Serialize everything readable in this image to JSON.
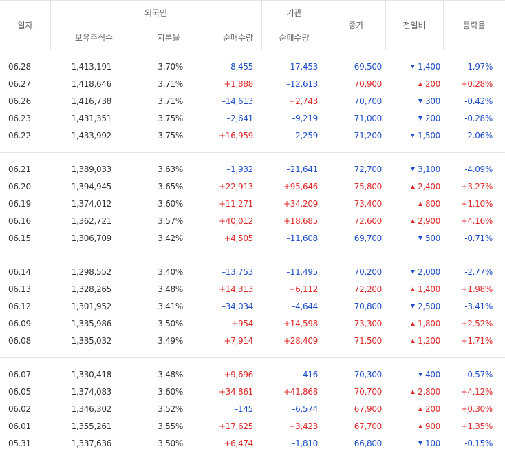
{
  "header": {
    "date": "일자",
    "foreign": "외국인",
    "holdings": "보유주식수",
    "ratio": "지분율",
    "foreign_net": "순매수량",
    "institution": "기관",
    "institution_net": "순매수량",
    "close": "종가",
    "change": "전일비",
    "rate": "등락율"
  },
  "groups": [
    {
      "rows": [
        [
          "06.28",
          "1,413,191",
          "3.70%",
          "–8,455",
          "–17,453",
          "69,500",
          "1,400",
          "-1.97%"
        ],
        [
          "06.27",
          "1,418,646",
          "3.71%",
          "+1,888",
          "–12,613",
          "70,900",
          "200",
          "+0.28%"
        ],
        [
          "06.26",
          "1,416,738",
          "3.71%",
          "–14,613",
          "+2,743",
          "70,700",
          "300",
          "-0.42%"
        ],
        [
          "06.23",
          "1,431,351",
          "3.75%",
          "–2,641",
          "–9,219",
          "71,000",
          "200",
          "-0.28%"
        ],
        [
          "06.22",
          "1,433,992",
          "3.75%",
          "+16,959",
          "–2,259",
          "71,200",
          "1,500",
          "-2.06%"
        ]
      ]
    },
    {
      "rows": [
        [
          "06.21",
          "1,389,033",
          "3.63%",
          "–1,932",
          "–21,641",
          "72,700",
          "3,100",
          "-4.09%"
        ],
        [
          "06.20",
          "1,394,945",
          "3.65%",
          "+22,913",
          "+95,646",
          "75,800",
          "2,400",
          "+3.27%"
        ],
        [
          "06.19",
          "1,374,012",
          "3.60%",
          "+11,271",
          "+34,209",
          "73,400",
          "800",
          "+1.10%"
        ],
        [
          "06.16",
          "1,362,721",
          "3.57%",
          "+40,012",
          "+18,685",
          "72,600",
          "2,900",
          "+4.16%"
        ],
        [
          "06.15",
          "1,306,709",
          "3.42%",
          "+4,505",
          "–11,608",
          "69,700",
          "500",
          "-0.71%"
        ]
      ]
    },
    {
      "rows": [
        [
          "06.14",
          "1,298,552",
          "3.40%",
          "–13,753",
          "–11,495",
          "70,200",
          "2,000",
          "-2.77%"
        ],
        [
          "06.13",
          "1,328,265",
          "3.48%",
          "+14,313",
          "+6,112",
          "72,200",
          "1,400",
          "+1.98%"
        ],
        [
          "06.12",
          "1,301,952",
          "3.41%",
          "–34,034",
          "–4,644",
          "70,800",
          "2,500",
          "-3.41%"
        ],
        [
          "06.09",
          "1,335,986",
          "3.50%",
          "+954",
          "+14,598",
          "73,300",
          "1,800",
          "+2.52%"
        ],
        [
          "06.08",
          "1,335,032",
          "3.49%",
          "+7,914",
          "+28,409",
          "71,500",
          "1,200",
          "+1.71%"
        ]
      ]
    },
    {
      "rows": [
        [
          "06.07",
          "1,330,418",
          "3.48%",
          "+9,696",
          "–416",
          "70,300",
          "400",
          "-0.57%"
        ],
        [
          "06.05",
          "1,374,083",
          "3.60%",
          "+34,861",
          "+41,868",
          "70,700",
          "2,800",
          "+4.12%"
        ],
        [
          "06.02",
          "1,346,302",
          "3.52%",
          "–145",
          "–6,574",
          "67,900",
          "200",
          "+0.30%"
        ],
        [
          "06.01",
          "1,355,261",
          "3.55%",
          "+17,625",
          "+3,423",
          "67,700",
          "900",
          "+1.35%"
        ],
        [
          "05.31",
          "1,337,636",
          "3.50%",
          "+6,474",
          "–1,810",
          "66,800",
          "100",
          "-0.15%"
        ]
      ]
    }
  ]
}
